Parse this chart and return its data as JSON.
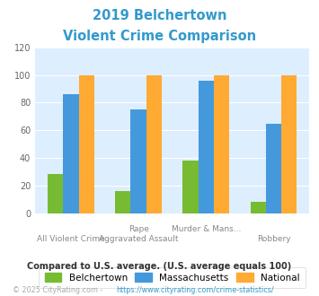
{
  "title_line1": "2019 Belchertown",
  "title_line2": "Violent Crime Comparison",
  "title_color": "#3399cc",
  "b_vals": [
    28,
    16,
    38,
    8
  ],
  "ma_vals": [
    86,
    75,
    96,
    65
  ],
  "nat_vals": [
    100,
    100,
    100,
    100
  ],
  "color_belchertown": "#77bb33",
  "color_massachusetts": "#4499dd",
  "color_national": "#ffaa33",
  "ylim": [
    0,
    120
  ],
  "yticks": [
    0,
    20,
    40,
    60,
    80,
    100,
    120
  ],
  "plot_bg": "#ddeeff",
  "fig_bg": "#ffffff",
  "note": "Compared to U.S. average. (U.S. average equals 100)",
  "note_color": "#333333",
  "copyright_text": "© 2025 CityRating.com - ",
  "url_text": "https://www.cityrating.com/crime-statistics/",
  "copyright_color": "#aaaaaa",
  "url_color": "#3399cc",
  "legend_labels": [
    "Belchertown",
    "Massachusetts",
    "National"
  ],
  "top_labels": [
    "",
    "Rape",
    "Murder & Mans...",
    ""
  ],
  "bottom_labels": [
    "All Violent Crime",
    "Aggravated Assault",
    "",
    "Robbery"
  ]
}
